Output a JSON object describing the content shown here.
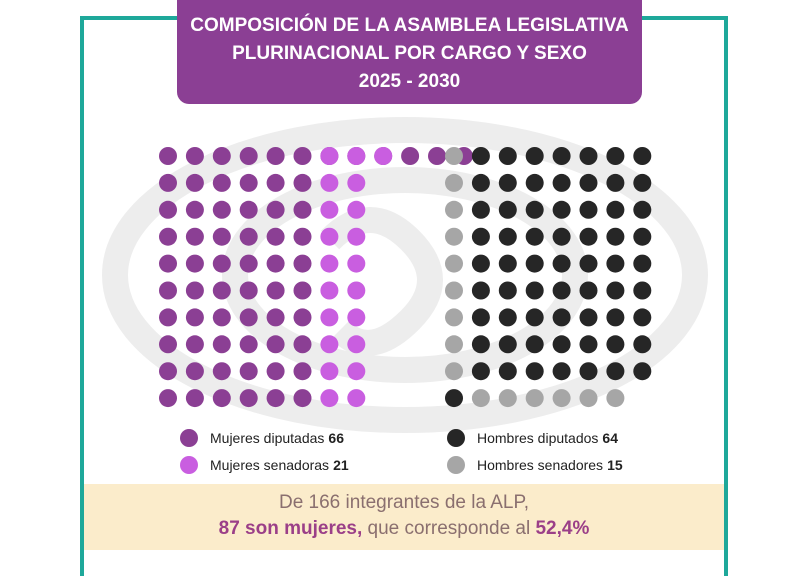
{
  "title": {
    "line1": "COMPOSICIÓN DE LA ASAMBLEA LEGISLATIVA",
    "line2": "PLURINACIONAL POR CARGO Y SEXO",
    "line3": "2025 - 2030"
  },
  "colors": {
    "frame": "#1ea89a",
    "title_bg": "#8b3f94",
    "mujeres_diputadas": "#8b3f94",
    "mujeres_senadoras": "#c95ee0",
    "hombres_diputados": "#262626",
    "hombres_senadores": "#a6a6a6",
    "footer_bg": "#fbeccb"
  },
  "chart_data": {
    "type": "waffle",
    "title": "COMPOSICIÓN DE LA ASAMBLEA LEGISLATIVA PLURINACIONAL POR CARGO Y SEXO 2025 - 2030",
    "total": 166,
    "series": [
      {
        "name": "Mujeres diputadas",
        "value": 66,
        "group": "mujeres"
      },
      {
        "name": "Mujeres senadoras",
        "value": 21,
        "group": "mujeres"
      },
      {
        "name": "Hombres diputados",
        "value": 64,
        "group": "hombres"
      },
      {
        "name": "Hombres senadores",
        "value": 15,
        "group": "hombres"
      }
    ]
  },
  "legend": [
    {
      "label": "Mujeres diputadas",
      "value": "66"
    },
    {
      "label": "Mujeres senadoras",
      "value": "21"
    },
    {
      "label": "Hombres diputados",
      "value": "64"
    },
    {
      "label": "Hombres senadores",
      "value": "15"
    }
  ],
  "footer": {
    "line1": "De 166 integrantes de la ALP,",
    "highlight1": "87 son mujeres,",
    "middle": " que corresponde al ",
    "highlight2": "52,4%"
  }
}
